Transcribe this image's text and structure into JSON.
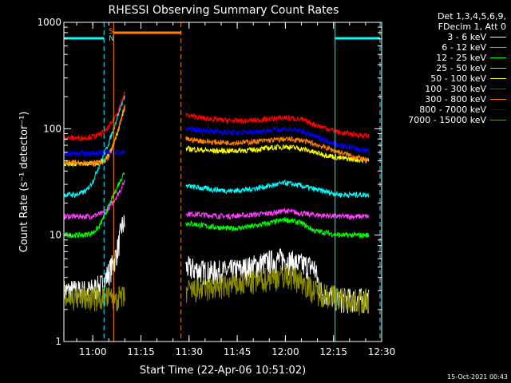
{
  "chart_data": {
    "type": "line",
    "title": "RHESSI Observing Summary Count Rates",
    "xlabel": "Start Time (22-Apr-06 10:51:02)",
    "ylabel": "Count Rate (s⁻¹ detector⁻¹)",
    "y_scale": "log",
    "ylim": [
      1,
      1000
    ],
    "xlim_minutes_after_start": [
      0,
      99
    ],
    "x_ticks": [
      {
        "label": "11:00",
        "value": 9
      },
      {
        "label": "11:15",
        "value": 24
      },
      {
        "label": "11:30",
        "value": 39
      },
      {
        "label": "11:45",
        "value": 54
      },
      {
        "label": "12:00",
        "value": 69
      },
      {
        "label": "12:15",
        "value": 84
      },
      {
        "label": "12:30",
        "value": 99
      }
    ],
    "y_ticks": [
      {
        "label": "1",
        "value": 1
      },
      {
        "label": "10",
        "value": 10
      },
      {
        "label": "100",
        "value": 100
      },
      {
        "label": "1000",
        "value": 1000
      }
    ],
    "legend_header": [
      "Det 1,3,4,5,6,9,",
      "FDecim 1, Att 0"
    ],
    "legend_position": "top-right",
    "series": [
      {
        "name": "3 - 6 keV",
        "color": "#ffffff",
        "points": [
          [
            0,
            3
          ],
          [
            8,
            3
          ],
          [
            12,
            3.4
          ],
          [
            14,
            4.5
          ],
          [
            15.5,
            5.5
          ],
          [
            17,
            8
          ],
          [
            18,
            12
          ],
          [
            19,
            13
          ]
        ],
        "points2": [
          [
            38,
            5
          ],
          [
            45,
            4.5
          ],
          [
            52,
            4.6
          ],
          [
            58,
            5
          ],
          [
            62,
            5.5
          ],
          [
            68,
            6
          ],
          [
            72,
            5.5
          ],
          [
            78,
            5
          ],
          [
            80,
            3
          ],
          [
            86,
            2.5
          ],
          [
            92,
            2.5
          ],
          [
            95,
            2.5
          ]
        ]
      },
      {
        "name": "6 - 12 keV",
        "color": "#ff40ff",
        "points": [
          [
            0,
            15
          ],
          [
            8,
            15
          ],
          [
            12,
            16
          ],
          [
            14,
            18
          ],
          [
            16,
            22
          ],
          [
            18,
            28
          ],
          [
            19,
            33
          ]
        ],
        "points2": [
          [
            38,
            16
          ],
          [
            50,
            15
          ],
          [
            58,
            15.5
          ],
          [
            64,
            16
          ],
          [
            69,
            17
          ],
          [
            74,
            16
          ],
          [
            78,
            15.5
          ],
          [
            86,
            15
          ],
          [
            95,
            15
          ]
        ]
      },
      {
        "name": "12 - 25 keV",
        "color": "#00ff00",
        "points": [
          [
            0,
            10
          ],
          [
            6,
            10
          ],
          [
            9,
            10.5
          ],
          [
            11,
            12
          ],
          [
            13,
            16
          ],
          [
            15,
            22
          ],
          [
            17,
            30
          ],
          [
            19,
            40
          ]
        ],
        "points2": [
          [
            38,
            13
          ],
          [
            46,
            12
          ],
          [
            52,
            11.5
          ],
          [
            58,
            12
          ],
          [
            64,
            13
          ],
          [
            69,
            14
          ],
          [
            74,
            13
          ],
          [
            78,
            11
          ],
          [
            86,
            10
          ],
          [
            95,
            10
          ]
        ]
      },
      {
        "name": "25 - 50 keV",
        "color": "#00ffff",
        "points": [
          [
            0,
            24
          ],
          [
            4,
            24
          ],
          [
            7,
            26
          ],
          [
            9,
            32
          ],
          [
            11,
            45
          ],
          [
            13,
            62
          ],
          [
            15,
            90
          ],
          [
            17,
            140
          ],
          [
            19,
            210
          ]
        ],
        "points2": [
          [
            38,
            29
          ],
          [
            46,
            27
          ],
          [
            52,
            26
          ],
          [
            58,
            27
          ],
          [
            64,
            29
          ],
          [
            69,
            31
          ],
          [
            74,
            29
          ],
          [
            78,
            27
          ],
          [
            86,
            24
          ],
          [
            95,
            24
          ]
        ]
      },
      {
        "name": "50 - 100 keV",
        "color": "#ffff00",
        "points": [
          [
            0,
            47
          ],
          [
            10,
            47
          ],
          [
            13,
            50
          ],
          [
            15,
            65
          ],
          [
            17,
            100
          ],
          [
            19,
            160
          ]
        ],
        "points2": [
          [
            38,
            65
          ],
          [
            46,
            62
          ],
          [
            52,
            62
          ],
          [
            58,
            63
          ],
          [
            64,
            66
          ],
          [
            69,
            68
          ],
          [
            74,
            65
          ],
          [
            78,
            60
          ],
          [
            86,
            53
          ],
          [
            95,
            50
          ]
        ]
      },
      {
        "name": "100 - 300 keV",
        "color": "#ff0000",
        "points": [
          [
            0,
            82
          ],
          [
            6,
            82
          ],
          [
            10,
            85
          ],
          [
            13,
            95
          ],
          [
            15,
            115
          ],
          [
            17,
            150
          ],
          [
            19,
            220
          ]
        ],
        "points2": [
          [
            38,
            135
          ],
          [
            44,
            125
          ],
          [
            50,
            120
          ],
          [
            56,
            118
          ],
          [
            62,
            122
          ],
          [
            69,
            128
          ],
          [
            74,
            122
          ],
          [
            78,
            110
          ],
          [
            86,
            92
          ],
          [
            95,
            85
          ]
        ]
      },
      {
        "name": "300 - 800 keV",
        "color": "#ff8000",
        "points": [
          [
            0,
            48
          ],
          [
            12,
            48
          ],
          [
            14,
            55
          ],
          [
            16,
            80
          ],
          [
            18,
            125
          ],
          [
            19,
            170
          ]
        ],
        "points2": [
          [
            38,
            80
          ],
          [
            46,
            75
          ],
          [
            52,
            74
          ],
          [
            58,
            75
          ],
          [
            64,
            78
          ],
          [
            69,
            80
          ],
          [
            74,
            78
          ],
          [
            78,
            72
          ],
          [
            86,
            60
          ],
          [
            95,
            50
          ]
        ]
      },
      {
        "name": "800 - 7000 keV",
        "color": "#0000ff",
        "points": [
          [
            0,
            58
          ],
          [
            19,
            60
          ]
        ],
        "points2": [
          [
            38,
            100
          ],
          [
            46,
            95
          ],
          [
            52,
            92
          ],
          [
            58,
            93
          ],
          [
            64,
            97
          ],
          [
            69,
            100
          ],
          [
            74,
            95
          ],
          [
            78,
            85
          ],
          [
            86,
            70
          ],
          [
            95,
            62
          ]
        ]
      },
      {
        "name": "7000 - 15000 keV",
        "color": "#8b8b00",
        "points": [
          [
            0,
            2.6
          ],
          [
            6,
            2.6
          ],
          [
            12,
            2.6
          ],
          [
            19,
            2.6
          ]
        ],
        "points2": [
          [
            38,
            3
          ],
          [
            46,
            3.2
          ],
          [
            52,
            3.4
          ],
          [
            58,
            3.6
          ],
          [
            64,
            4
          ],
          [
            69,
            4.2
          ],
          [
            74,
            3.8
          ],
          [
            78,
            3
          ],
          [
            86,
            2.6
          ],
          [
            92,
            2.4
          ],
          [
            95,
            2.5
          ]
        ]
      }
    ],
    "markers": {
      "saa_flag_intervals": [
        [
          0,
          12.5
        ],
        [
          84.5,
          98.5
        ]
      ],
      "saa_labels": {
        "s_label": "S",
        "n_label": "N"
      },
      "night_bar_interval": [
        15.5,
        36.5
      ],
      "cyan_dashed_lines": [
        12.5,
        98.5
      ],
      "cyan_solid_lines": [
        0,
        84.5
      ],
      "orange_solid_line": 15.5,
      "orange_dashed_line": 36.5
    }
  },
  "timestamp": "15-Oct-2021 00:43"
}
